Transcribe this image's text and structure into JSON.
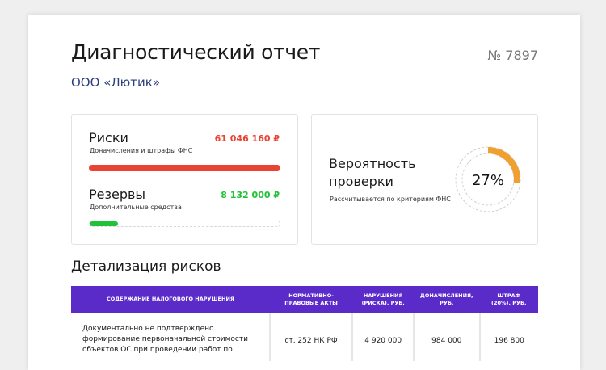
{
  "header": {
    "title": "Диагностический отчет",
    "number": "№ 7897",
    "company": "ООО «Лютик»"
  },
  "risks": {
    "title": "Риски",
    "subtitle": "Доначисления и штрафы ФНС",
    "amount": "61 046 160 ₽",
    "fill_percent": 100,
    "color": "#e84433"
  },
  "reserves": {
    "title": "Резервы",
    "subtitle": "Дополнительные средства",
    "amount": "8 132 000 ₽",
    "fill_percent": 15,
    "color": "#22c13a"
  },
  "probability": {
    "title_line1": "Вероятность",
    "title_line2": "проверки",
    "subtitle": "Рассчитывается по критериям ФНС",
    "value": "27%",
    "percent": 27,
    "color": "#f0a030"
  },
  "details": {
    "title": "Детализация рисков",
    "columns": [
      "Содержание налогового нарушения",
      "Нормативно-правовые акты",
      "Нарушения (риска), руб.",
      "Доначисления, руб.",
      "Штраф (20%), руб."
    ],
    "rows": [
      {
        "description": "Документально не подтверждено формирование первоначальной стоимости объектов ОС при проведении работ по",
        "act": "ст. 252 НК РФ",
        "violation": "4 920 000",
        "additional": "984 000",
        "fine": "196 800"
      }
    ]
  }
}
